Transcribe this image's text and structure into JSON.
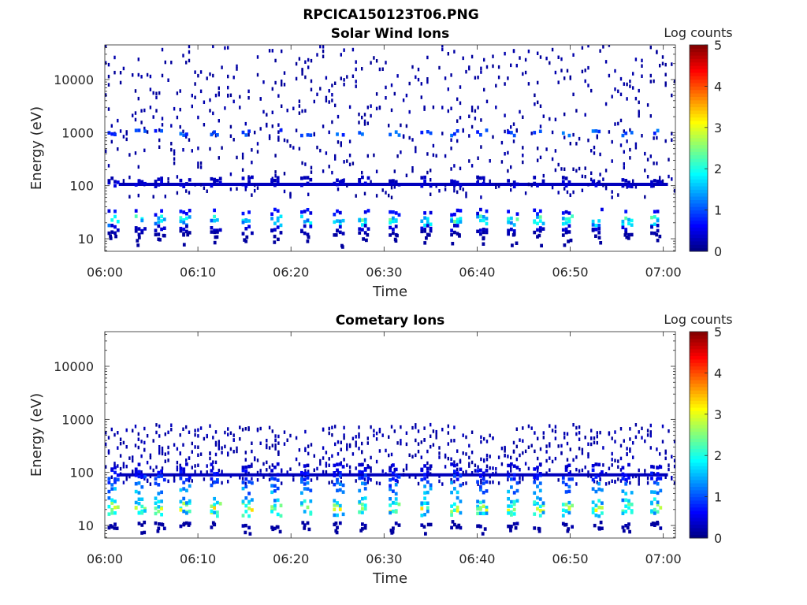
{
  "figure": {
    "filename": "RPCICA150123T06.PNG"
  },
  "colors": {
    "colormap": "jet",
    "axis": "#262626",
    "background": "#ffffff"
  },
  "chart_data": [
    {
      "type": "heatmap",
      "title": "Solar Wind Ions",
      "xlabel": "Time",
      "ylabel": "Energy (eV)",
      "x_ticks": [
        "06:00",
        "06:10",
        "06:20",
        "06:30",
        "06:40",
        "06:50",
        "07:00"
      ],
      "x_tick_minutes": [
        0,
        10,
        20,
        30,
        40,
        50,
        60
      ],
      "xlim_minutes": [
        0,
        61.3
      ],
      "y_scale": "log",
      "ylim": [
        5.8,
        45000
      ],
      "y_ticks": [
        10,
        100,
        1000,
        10000
      ],
      "y_tick_labels": [
        "10",
        "100",
        "1000",
        "10000"
      ],
      "colorbar": {
        "label": "Log counts",
        "range": [
          0,
          5
        ],
        "ticks": [
          "0",
          "1",
          "2",
          "3",
          "4",
          "5"
        ]
      },
      "sweep_minutes": [
        0.8,
        3.7,
        5.8,
        8.5,
        11.8,
        15.2,
        18.3,
        21.5,
        25.0,
        27.7,
        31.0,
        34.4,
        37.6,
        40.4,
        43.7,
        46.5,
        49.6,
        52.8,
        56.0,
        59.1
      ],
      "bands": [
        {
          "energy": 24,
          "level": 1.9
        },
        {
          "energy": 20,
          "level": 1.5
        },
        {
          "energy": 32,
          "level": 0.6
        },
        {
          "energy": 16,
          "level": 0.4
        },
        {
          "energy": 13,
          "level": 0.2
        },
        {
          "energy": 110,
          "level": 0.4
        },
        {
          "energy": 130,
          "level": 0.3
        },
        {
          "energy": 1000,
          "level": 1.0
        }
      ],
      "sparse_level": 0.15,
      "continuous_line": {
        "energy": 106,
        "level": 0.3
      }
    },
    {
      "type": "heatmap",
      "title": "Cometary Ions",
      "xlabel": "Time",
      "ylabel": "Energy (eV)",
      "x_ticks": [
        "06:00",
        "06:10",
        "06:20",
        "06:30",
        "06:40",
        "06:50",
        "07:00"
      ],
      "x_tick_minutes": [
        0,
        10,
        20,
        30,
        40,
        50,
        60
      ],
      "xlim_minutes": [
        0,
        61.3
      ],
      "y_scale": "log",
      "ylim": [
        5.8,
        45000
      ],
      "y_ticks": [
        10,
        100,
        1000,
        10000
      ],
      "y_tick_labels": [
        "10",
        "100",
        "1000",
        "10000"
      ],
      "colorbar": {
        "label": "Log counts",
        "range": [
          0,
          5
        ],
        "ticks": [
          "0",
          "1",
          "2",
          "3",
          "4",
          "5"
        ]
      },
      "sweep_minutes": [
        0.8,
        3.7,
        5.8,
        8.5,
        11.8,
        15.2,
        18.3,
        21.5,
        25.0,
        27.7,
        31.0,
        34.4,
        37.6,
        40.4,
        43.7,
        46.5,
        49.6,
        52.8,
        56.0,
        59.1
      ],
      "bands": [
        {
          "energy": 24,
          "level": 2.2
        },
        {
          "energy": 20,
          "level": 2.6
        },
        {
          "energy": 17,
          "level": 1.8
        },
        {
          "energy": 30,
          "level": 1.6
        },
        {
          "energy": 45,
          "level": 1.3
        },
        {
          "energy": 60,
          "level": 1.1
        },
        {
          "energy": 80,
          "level": 0.8
        },
        {
          "energy": 100,
          "level": 0.6
        },
        {
          "energy": 130,
          "level": 0.4
        },
        {
          "energy": 10,
          "level": 0.2
        }
      ],
      "sparse_level": 0.2,
      "continuous_line": {
        "energy": 90,
        "level": 0.3
      }
    }
  ]
}
